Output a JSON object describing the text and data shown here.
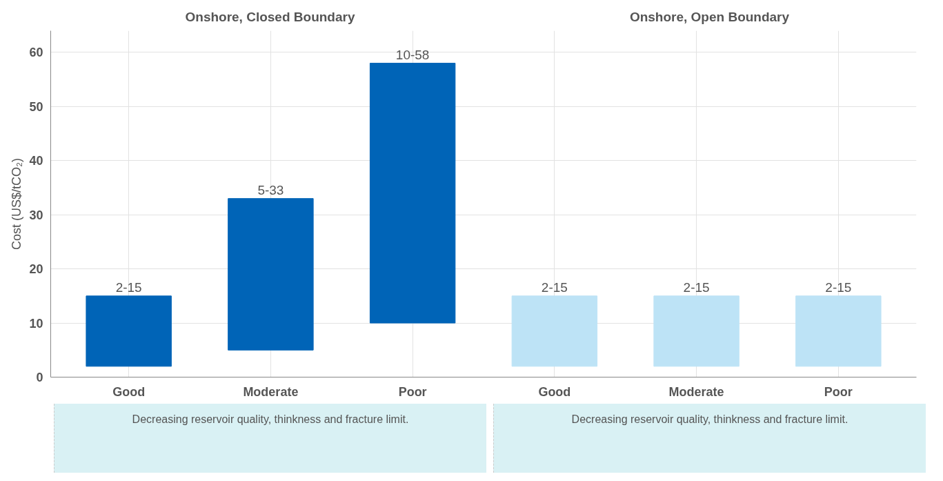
{
  "chart_data": {
    "type": "bar",
    "ylabel": "Cost (US$/tCO₂)",
    "categories": [
      "Good",
      "Moderate",
      "Poor",
      "Good",
      "Moderate",
      "Poor"
    ],
    "base": [
      2,
      5,
      10,
      2,
      2,
      2
    ],
    "values": [
      13,
      28,
      48,
      13,
      13,
      13
    ],
    "colors": [
      "#0064b7",
      "#0064b7",
      "#0064b7",
      "#bde3f6",
      "#bde3f6",
      "#bde3f6"
    ],
    "value_labels": [
      "2-15",
      "5-33",
      "10-58",
      "2-15",
      "2-15",
      "2-15"
    ],
    "ylim": [
      0,
      64
    ],
    "yticks": [
      0,
      10,
      20,
      30,
      40,
      50,
      60
    ],
    "grid": true,
    "annotations": [
      "Onshore, Closed Boundary",
      "Onshore, Open Boundary",
      "Decreasing reservoir quality, thinkness and fracture limit.",
      "Decreasing reservoir quality, thinkness and fracture limit."
    ]
  }
}
